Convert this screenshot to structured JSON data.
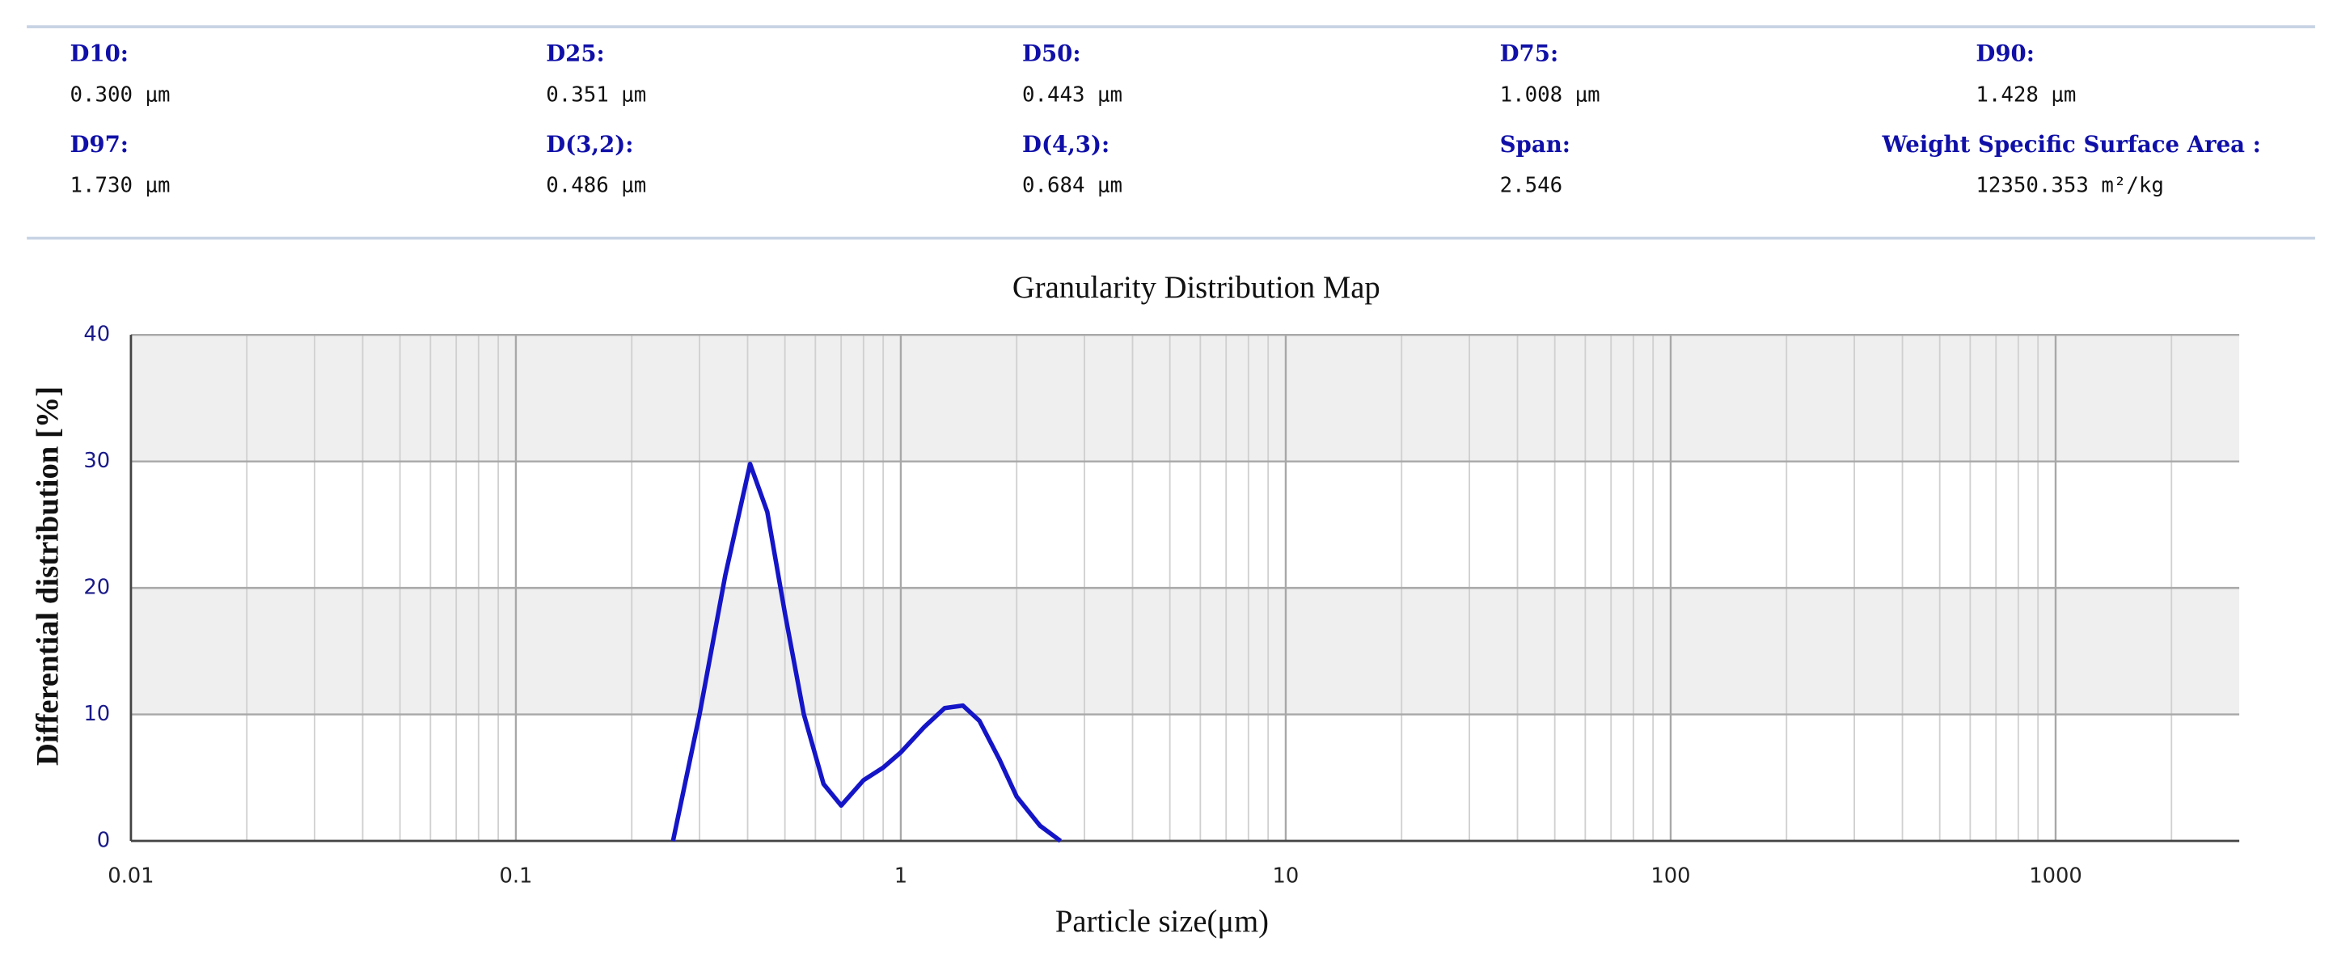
{
  "stats": [
    {
      "label": "D10:",
      "value": "0.300 μm"
    },
    {
      "label": "D25:",
      "value": "0.351 μm"
    },
    {
      "label": "D50:",
      "value": "0.443 μm"
    },
    {
      "label": "D75:",
      "value": "1.008 μm"
    },
    {
      "label": "D90:",
      "value": "1.428 μm"
    },
    {
      "label": "D97:",
      "value": "1.730 μm"
    },
    {
      "label": "D(3,2):",
      "value": "0.486 μm"
    },
    {
      "label": "D(4,3):",
      "value": "0.684 μm"
    },
    {
      "label": "Span:",
      "value": "2.546"
    },
    {
      "label": "Weight Specific Surface Area :",
      "value": "12350.353 m²/kg"
    }
  ],
  "chart_data": {
    "type": "line",
    "title": "Granularity Distribution Map",
    "x_label": "Particle size(μm)",
    "y_label": "Differential distribution [%]",
    "x": [
      0.256,
      0.3,
      0.35,
      0.406,
      0.45,
      0.5,
      0.56,
      0.63,
      0.7,
      0.8,
      0.9,
      1.0,
      1.15,
      1.3,
      1.45,
      1.6,
      1.8,
      2.0,
      2.3,
      2.6
    ],
    "series": [
      {
        "name": "Differential distribution",
        "color": "#1515c8",
        "values": [
          0,
          10,
          21,
          29.8,
          26,
          18,
          10,
          4.5,
          2.8,
          4.8,
          5.8,
          7,
          9,
          10.5,
          10.7,
          9.5,
          6.5,
          3.5,
          1.2,
          0
        ]
      }
    ],
    "xlim": [
      0.01,
      3000
    ],
    "xticks": [
      0.01,
      0.1,
      1,
      10,
      100,
      1000
    ],
    "x_log": true,
    "ylim": [
      0,
      40
    ],
    "yticks": [
      0,
      10,
      20,
      30,
      40
    ],
    "grid": true,
    "band_color": "#efefef"
  }
}
